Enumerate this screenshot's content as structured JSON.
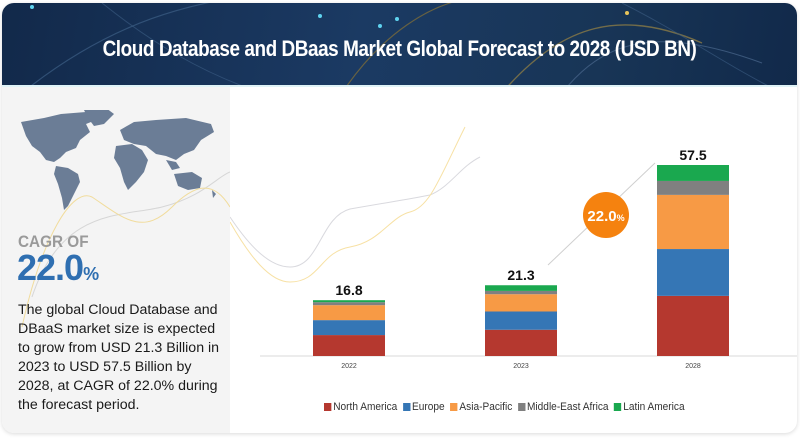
{
  "header": {
    "title": "Cloud Database and DBaas Market Global Forecast to 2028 (USD BN)"
  },
  "left_panel": {
    "map_icon": "world-map-icon",
    "cagr_label": "CAGR OF",
    "cagr_value": "22.0",
    "cagr_unit": "%",
    "description": "The global Cloud Database and DBaaS market size is expected to grow from USD 21.3 Billion in 2023 to USD 57.5 Billion by 2028, at CAGR of 22.0% during the forecast period."
  },
  "chart_data": {
    "type": "bar",
    "stacked": true,
    "title": "Cloud Database and DBaas Market Global Forecast to 2028 (USD BN)",
    "categories": [
      "2022",
      "2023",
      "2028"
    ],
    "totals": [
      "16.8",
      "21.3",
      "57.5"
    ],
    "series": [
      {
        "name": "North America",
        "color": "#b5382f",
        "values": [
          6.3,
          7.9,
          18.1
        ]
      },
      {
        "name": "Europe",
        "color": "#3576b5",
        "values": [
          4.5,
          5.5,
          14.1
        ]
      },
      {
        "name": "Asia-Pacific",
        "color": "#f79a45",
        "values": [
          4.5,
          5.2,
          16.3
        ]
      },
      {
        "name": "Middle-East Africa",
        "color": "#808080",
        "values": [
          0.9,
          1.0,
          4.2
        ]
      },
      {
        "name": "Latin America",
        "color": "#1aa84f",
        "values": [
          0.6,
          1.7,
          4.8
        ]
      }
    ],
    "annotation": {
      "label": "22.0",
      "unit": "%",
      "color": "#f5820f",
      "from": "2023",
      "to": "2028"
    },
    "ylim": [
      0,
      57.5
    ],
    "xlabel": "",
    "ylabel": "",
    "grid": false,
    "legend_position": "bottom"
  }
}
